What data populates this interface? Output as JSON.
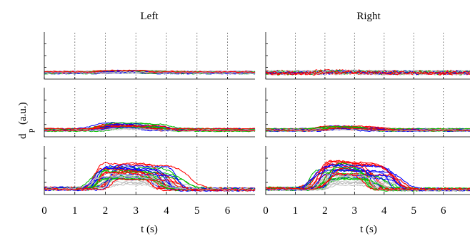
{
  "chart_data": {
    "type": "line",
    "layout": "3 rows x 2 columns of panels, shared y label",
    "columns": [
      {
        "title": "Left"
      },
      {
        "title": "Right"
      }
    ],
    "ylabel_main": "d",
    "ylabel_sub": "p",
    "ylabel_unit": "(a.u.)",
    "xlabel": "t (s)",
    "x_ticks": [
      "0",
      "1",
      "2",
      "3",
      "4",
      "5",
      "6"
    ],
    "xlim": [
      0,
      6.9
    ],
    "grid": "vertical dotted lines at each second",
    "series_colors": {
      "red": "#ff0000",
      "green": "#00c000",
      "blue": "#0000ff",
      "gray": "#c0c0c0"
    },
    "panels": [
      {
        "row": 1,
        "column": "Left",
        "description": "flat traces near baseline, small bump around 2–3 s"
      },
      {
        "row": 1,
        "column": "Right",
        "description": "flat noisy traces near baseline"
      },
      {
        "row": 2,
        "column": "Left",
        "description": "small plateau between ~1.5 s and ~4 s"
      },
      {
        "row": 2,
        "column": "Right",
        "description": "very small plateau between ~2 s and ~3.5 s"
      },
      {
        "row": 3,
        "column": "Left",
        "description": "large response rising at ~1.5–2.3 s, plateau, decaying at ~3.5–4.5 s"
      },
      {
        "row": 3,
        "column": "Right",
        "description": "large response rising at ~1.5–2.3 s, plateau, decaying at ~3.5–4 s"
      }
    ]
  }
}
